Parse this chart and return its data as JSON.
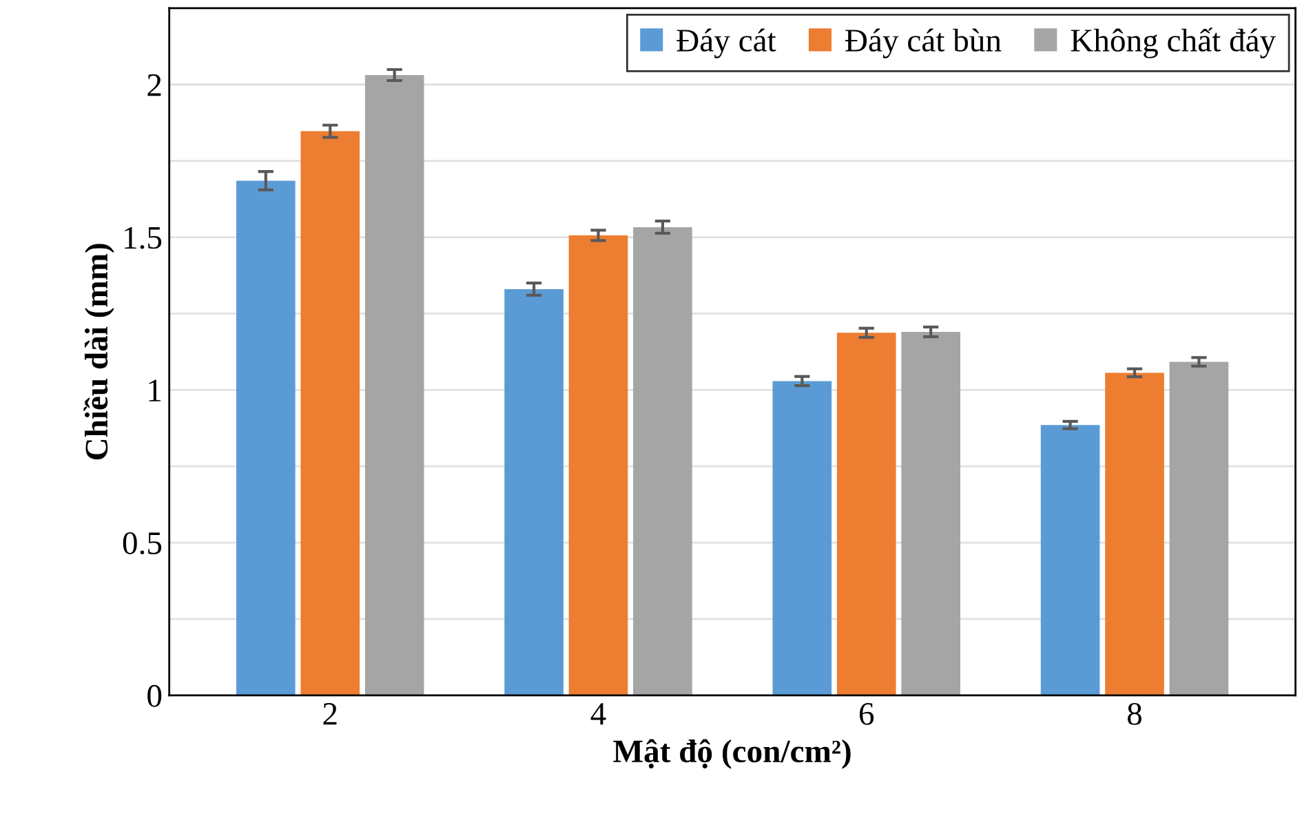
{
  "chart_data": {
    "type": "bar",
    "xlabel": "Mật độ (con/cm²)",
    "ylabel": "Chiều dài (mm)",
    "categories": [
      "2",
      "4",
      "6",
      "8"
    ],
    "series": [
      {
        "name": "Đáy cát",
        "color": "#5b9bd5",
        "values": [
          1.685,
          1.33,
          1.029,
          0.885
        ],
        "errors": [
          0.03,
          0.02,
          0.015,
          0.012
        ]
      },
      {
        "name": "Đáy cát bùn",
        "color": "#ed7d31",
        "values": [
          1.847,
          1.506,
          1.187,
          1.056
        ],
        "errors": [
          0.02,
          0.017,
          0.015,
          0.013
        ]
      },
      {
        "name": "Không chất đáy",
        "color": "#a5a5a5",
        "values": [
          2.031,
          1.533,
          1.19,
          1.092
        ],
        "errors": [
          0.018,
          0.02,
          0.016,
          0.014
        ]
      }
    ],
    "ylim": [
      0,
      2.25
    ],
    "yticks": [
      0,
      {
        "value": 0.25,
        "label": null
      },
      0.5,
      {
        "value": 0.75,
        "label": null
      },
      1,
      {
        "value": 1.25,
        "label": null
      },
      1.5,
      {
        "value": 1.75,
        "label": null
      },
      2
    ],
    "grid": "y",
    "legend": "top right"
  }
}
